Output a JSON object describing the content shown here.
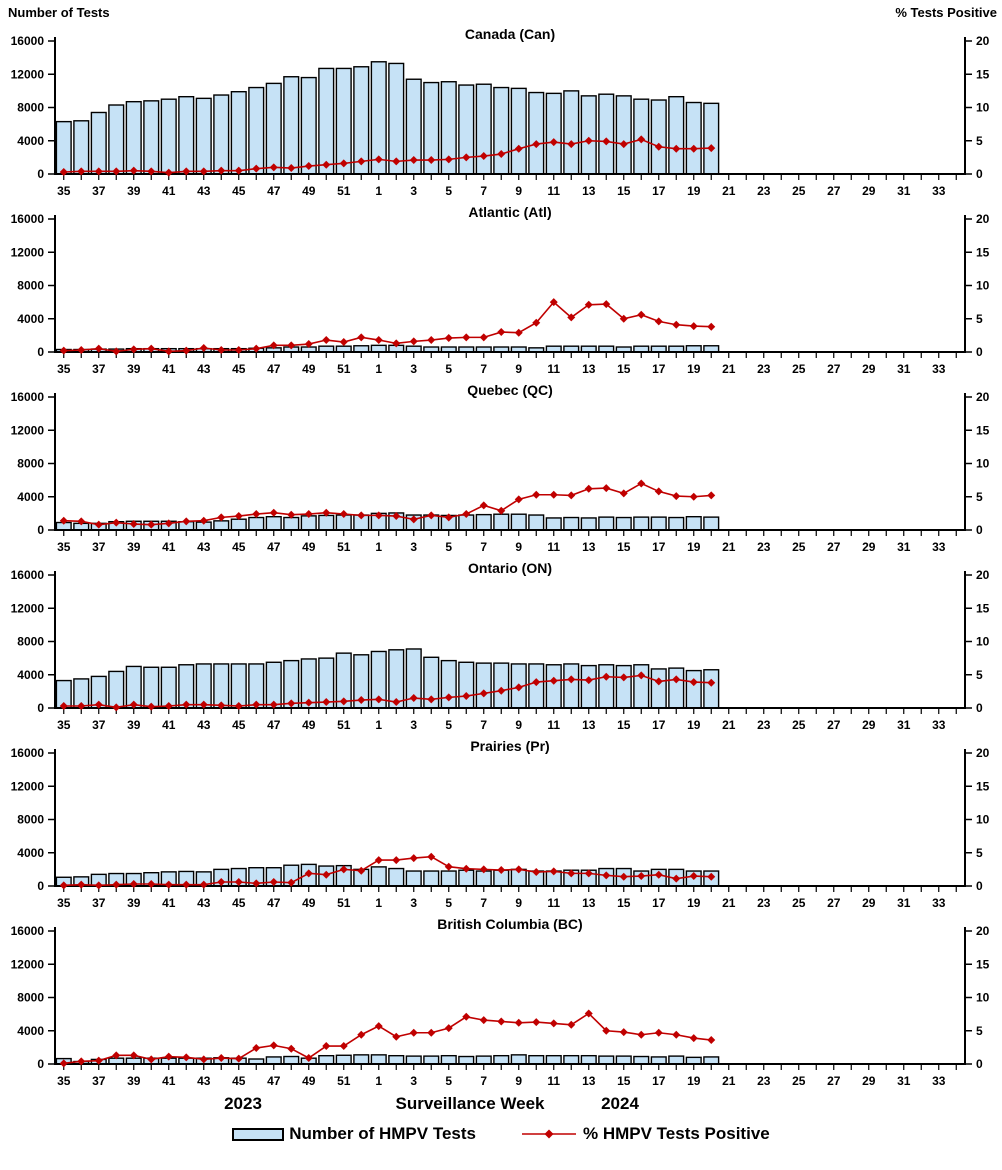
{
  "chart_data": {
    "type": "bar",
    "subtype": "bar+line small multiples (dual axis)",
    "left_axis": {
      "title": "Number of Tests",
      "min": 0,
      "max": 16000,
      "ticks": [
        0,
        4000,
        8000,
        12000,
        16000
      ]
    },
    "right_axis": {
      "title": "% Tests Positive",
      "min": 0,
      "max": 20,
      "ticks": [
        0,
        5,
        10,
        15,
        20
      ]
    },
    "x": {
      "axis_title": "Surveillance Week",
      "year_left": "2023",
      "year_right": "2024",
      "first_week": 35,
      "weeks_in_2024": 34,
      "labeled_ticks": [
        "35",
        "37",
        "39",
        "41",
        "43",
        "45",
        "47",
        "49",
        "51",
        "1",
        "3",
        "5",
        "7",
        "9",
        "11",
        "13",
        "15",
        "17",
        "19",
        "21",
        "23",
        "25",
        "27",
        "29",
        "31",
        "33"
      ],
      "weeks": [
        35,
        36,
        37,
        38,
        39,
        40,
        41,
        42,
        43,
        44,
        45,
        46,
        47,
        48,
        49,
        50,
        51,
        52,
        1,
        2,
        3,
        4,
        5,
        6,
        7,
        8,
        9,
        10,
        11,
        12,
        13,
        14,
        15,
        16,
        17,
        18,
        19,
        20
      ]
    },
    "legend": {
      "bar_label": "Number of HMPV Tests",
      "line_label": "% HMPV Tests Positive",
      "bar_fill": "#C6E2F6",
      "bar_border": "#000000",
      "line_color": "#C00000"
    },
    "panels": [
      {
        "title": "Canada (Can)",
        "tests": [
          6300,
          6400,
          7400,
          8300,
          8700,
          8800,
          9000,
          9300,
          9100,
          9500,
          9900,
          10400,
          10900,
          11700,
          11600,
          12700,
          12700,
          12900,
          13500,
          13300,
          11400,
          11000,
          11100,
          10700,
          10800,
          10400,
          10300,
          9800,
          9700,
          10000,
          9400,
          9600,
          9400,
          9000,
          8900,
          9300,
          8600,
          8500
        ],
        "pct_positive": [
          0.3,
          0.4,
          0.4,
          0.4,
          0.5,
          0.4,
          0.2,
          0.4,
          0.4,
          0.5,
          0.5,
          0.8,
          1.0,
          0.9,
          1.2,
          1.4,
          1.6,
          1.9,
          2.2,
          1.9,
          2.1,
          2.1,
          2.2,
          2.5,
          2.7,
          3.0,
          3.8,
          4.5,
          4.8,
          4.5,
          5.0,
          4.9,
          4.5,
          5.2,
          4.1,
          3.8,
          3.8,
          3.9
        ]
      },
      {
        "title": "Atlantic (Atl)",
        "tests": [
          300,
          300,
          350,
          350,
          400,
          400,
          400,
          400,
          400,
          400,
          400,
          450,
          500,
          600,
          600,
          700,
          700,
          750,
          800,
          800,
          700,
          600,
          600,
          600,
          600,
          600,
          600,
          500,
          700,
          700,
          700,
          700,
          600,
          700,
          700,
          700,
          750,
          750
        ],
        "pct_positive": [
          0.2,
          0.3,
          0.5,
          0.1,
          0.4,
          0.5,
          0.1,
          0.2,
          0.6,
          0.3,
          0.3,
          0.5,
          1.0,
          1.0,
          1.2,
          1.8,
          1.5,
          2.2,
          1.8,
          1.3,
          1.6,
          1.8,
          2.1,
          2.2,
          2.2,
          3.0,
          2.9,
          4.4,
          7.5,
          5.2,
          7.1,
          7.2,
          5.0,
          5.6,
          4.6,
          4.1,
          3.9,
          3.8
        ]
      },
      {
        "title": "Quebec (QC)",
        "tests": [
          900,
          800,
          800,
          1000,
          1050,
          1050,
          1050,
          1000,
          950,
          1100,
          1300,
          1500,
          1600,
          1500,
          1700,
          1750,
          1800,
          1800,
          2000,
          2050,
          1800,
          1800,
          1750,
          1800,
          1850,
          1900,
          1900,
          1800,
          1450,
          1500,
          1450,
          1550,
          1500,
          1550,
          1550,
          1500,
          1600,
          1550
        ],
        "pct_positive": [
          1.4,
          1.3,
          0.8,
          1.1,
          0.9,
          0.8,
          1.0,
          1.3,
          1.4,
          1.9,
          2.1,
          2.4,
          2.6,
          2.3,
          2.4,
          2.6,
          2.4,
          2.2,
          2.2,
          2.1,
          1.6,
          2.2,
          1.9,
          2.4,
          3.7,
          2.9,
          4.6,
          5.3,
          5.3,
          5.2,
          6.2,
          6.3,
          5.5,
          7.0,
          5.8,
          5.1,
          5.0,
          5.2
        ]
      },
      {
        "title": "Ontario (ON)",
        "tests": [
          3300,
          3500,
          3800,
          4400,
          5000,
          4900,
          4900,
          5200,
          5300,
          5300,
          5300,
          5300,
          5500,
          5700,
          5900,
          6000,
          6600,
          6400,
          6800,
          7000,
          7100,
          6100,
          5700,
          5500,
          5400,
          5400,
          5300,
          5300,
          5200,
          5300,
          5100,
          5200,
          5100,
          5200,
          4700,
          4800,
          4500,
          4600
        ],
        "pct_positive": [
          0.3,
          0.3,
          0.5,
          0.1,
          0.5,
          0.2,
          0.3,
          0.5,
          0.5,
          0.4,
          0.3,
          0.5,
          0.5,
          0.7,
          0.8,
          0.9,
          1.0,
          1.2,
          1.3,
          0.9,
          1.5,
          1.3,
          1.6,
          1.8,
          2.2,
          2.6,
          3.1,
          3.9,
          4.1,
          4.3,
          4.2,
          4.7,
          4.6,
          4.9,
          4.0,
          4.3,
          3.9,
          3.8
        ]
      },
      {
        "title": "Prairies (Pr)",
        "tests": [
          1050,
          1100,
          1400,
          1500,
          1500,
          1600,
          1700,
          1750,
          1700,
          2000,
          2100,
          2200,
          2200,
          2500,
          2600,
          2400,
          2450,
          2000,
          2300,
          2100,
          1800,
          1800,
          1800,
          1900,
          1800,
          1900,
          2000,
          1800,
          1800,
          1900,
          1900,
          2100,
          2100,
          1800,
          2000,
          2000,
          1800,
          1800
        ],
        "pct_positive": [
          0.1,
          0.2,
          0.1,
          0.2,
          0.3,
          0.3,
          0.2,
          0.2,
          0.2,
          0.6,
          0.6,
          0.4,
          0.6,
          0.5,
          1.9,
          1.7,
          2.5,
          2.3,
          3.9,
          3.9,
          4.2,
          4.4,
          2.9,
          2.6,
          2.5,
          2.4,
          2.5,
          2.1,
          2.2,
          1.9,
          1.9,
          1.6,
          1.4,
          1.5,
          1.7,
          1.1,
          1.5,
          1.4
        ]
      },
      {
        "title": "British Columbia (BC)",
        "tests": [
          650,
          300,
          550,
          700,
          700,
          700,
          700,
          700,
          700,
          750,
          700,
          600,
          850,
          900,
          700,
          1000,
          1050,
          1100,
          1100,
          1000,
          950,
          950,
          1000,
          900,
          950,
          1000,
          1100,
          1000,
          1000,
          1000,
          1000,
          950,
          950,
          900,
          850,
          950,
          800,
          850
        ],
        "pct_positive": [
          0.1,
          0.4,
          0.5,
          1.3,
          1.3,
          0.7,
          1.1,
          1.0,
          0.7,
          0.9,
          0.8,
          2.4,
          2.8,
          2.3,
          0.9,
          2.7,
          2.7,
          4.4,
          5.7,
          4.1,
          4.7,
          4.7,
          5.4,
          7.1,
          6.6,
          6.4,
          6.2,
          6.3,
          6.1,
          5.9,
          7.6,
          5.0,
          4.8,
          4.4,
          4.7,
          4.4,
          3.9,
          3.6
        ]
      }
    ]
  }
}
